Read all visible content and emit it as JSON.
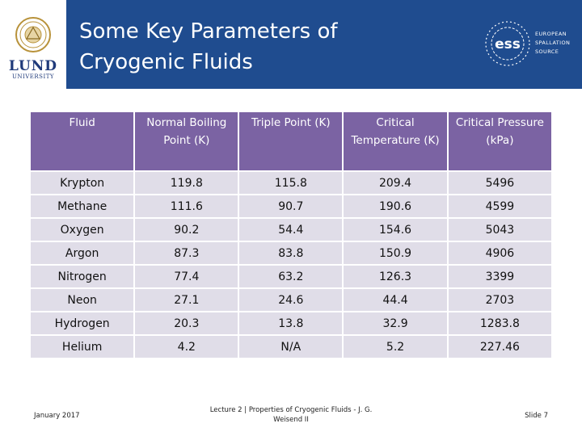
{
  "header": {
    "title_line1": "Some Key Parameters of",
    "title_line2": "Cryogenic Fluids",
    "left_logo": {
      "name": "lund-university-logo",
      "word": "LUND",
      "sub": "UNIVERSITY"
    },
    "right_logo": {
      "name": "ess-logo",
      "line1": "EUROPEAN",
      "line2": "SPALLATION",
      "line3": "SOURCE"
    }
  },
  "table": {
    "columns": [
      "Fluid",
      "Normal Boiling Point (K)",
      "Triple Point (K)",
      "Critical Temperature (K)",
      "Critical Pressure (kPa)"
    ],
    "rows": [
      [
        "Krypton",
        "119.8",
        "115.8",
        "209.4",
        "5496"
      ],
      [
        "Methane",
        "111.6",
        "90.7",
        "190.6",
        "4599"
      ],
      [
        "Oxygen",
        "90.2",
        "54.4",
        "154.6",
        "5043"
      ],
      [
        "Argon",
        "87.3",
        "83.8",
        "150.9",
        "4906"
      ],
      [
        "Nitrogen",
        "77.4",
        "63.2",
        "126.3",
        "3399"
      ],
      [
        "Neon",
        "27.1",
        "24.6",
        "44.4",
        "2703"
      ],
      [
        "Hydrogen",
        "20.3",
        "13.8",
        "32.9",
        "1283.8"
      ],
      [
        "Helium",
        "4.2",
        "N/A",
        "5.2",
        "227.46"
      ]
    ]
  },
  "footer": {
    "date": "January 2017",
    "lecture": "Lecture 2 | Properties of Cryogenic Fluids - J. G. Weisend II",
    "slide": "Slide 7"
  },
  "colors": {
    "header_bg": "#1f4c8f",
    "table_header_bg": "#7b63a3",
    "table_cell_bg": "#e0dde8"
  }
}
